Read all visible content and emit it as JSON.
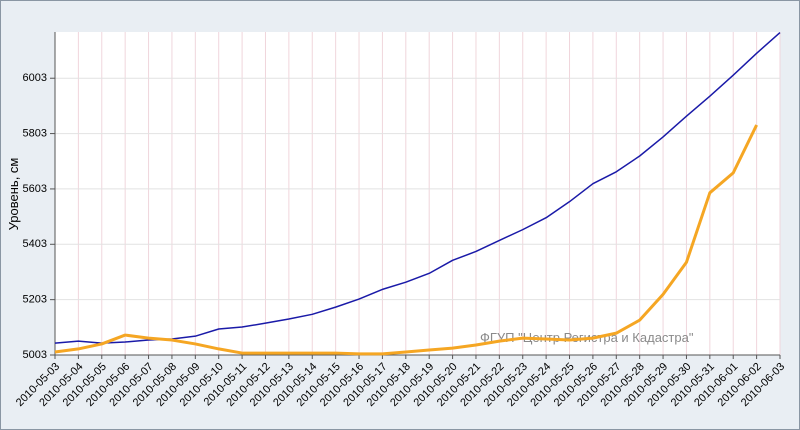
{
  "chart_data": {
    "type": "line",
    "y_label": "Уровень, см",
    "annotation": "ФГУП \"Центр Регистра и Кадастра\"",
    "categories": [
      "2010-05-03",
      "2010-05-04",
      "2010-05-05",
      "2010-05-06",
      "2010-05-07",
      "2010-05-08",
      "2010-05-09",
      "2010-05-10",
      "2010-05-11",
      "2010-05-12",
      "2010-05-13",
      "2010-05-14",
      "2010-05-15",
      "2010-05-16",
      "2010-05-17",
      "2010-05-18",
      "2010-05-19",
      "2010-05-20",
      "2010-05-21",
      "2010-05-22",
      "2010-05-23",
      "2010-05-24",
      "2010-05-25",
      "2010-05-26",
      "2010-05-27",
      "2010-05-28",
      "2010-05-29",
      "2010-05-30",
      "2010-05-31",
      "2010-06-01",
      "2010-06-02",
      "2010-06-03"
    ],
    "series": [
      {
        "color": "#1a1aa8",
        "values": [
          5046,
          5053,
          5046,
          5050,
          5057,
          5061,
          5071,
          5097,
          5104,
          5118,
          5133,
          5150,
          5176,
          5205,
          5240,
          5266,
          5298,
          5345,
          5377,
          5417,
          5456,
          5499,
          5557,
          5622,
          5665,
          5722,
          5791,
          5866,
          5938,
          6014,
          6093,
          6168
        ]
      },
      {
        "color": "#f5a623",
        "values": [
          5014,
          5025,
          5043,
          5075,
          5064,
          5057,
          5043,
          5025,
          5010,
          5010,
          5010,
          5010,
          5010,
          5007,
          5007,
          5014,
          5021,
          5028,
          5039,
          5053,
          5064,
          5061,
          5057,
          5064,
          5082,
          5129,
          5222,
          5338,
          5589,
          5661,
          5834,
          null
        ]
      }
    ],
    "ylim": [
      5003,
      6170
    ],
    "yticks": [
      5003,
      5203,
      5403,
      5603,
      5803,
      6003
    ],
    "grid": true
  }
}
